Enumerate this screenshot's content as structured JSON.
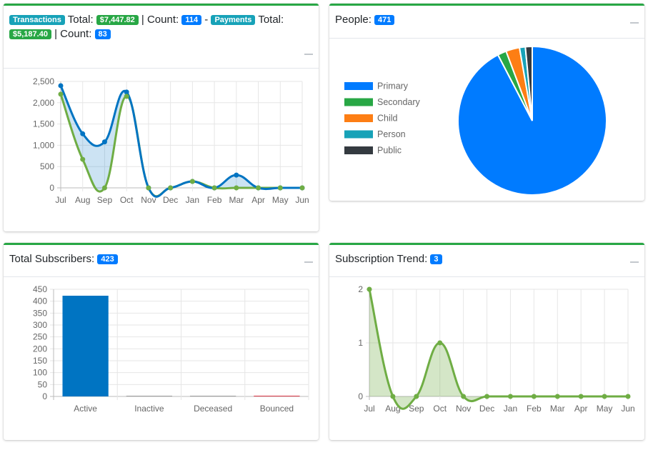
{
  "transactions_card": {
    "transactions_badge": "Transactions",
    "total_label": "Total:",
    "transactions_total": "$7,447.82",
    "count_label": "| Count:",
    "transactions_count": "114",
    "separator": "-",
    "payments_badge": "Payments",
    "payments_total": "$5,187.40",
    "payments_count": "83"
  },
  "people_card": {
    "title": "People:",
    "count": "471"
  },
  "subscribers_card": {
    "title": "Total Subscribers:",
    "count": "423"
  },
  "trend_card": {
    "title": "Subscription Trend:",
    "count": "3"
  },
  "colors": {
    "accent": "#28a745",
    "blue": "#0074c2",
    "green": "#6fad44"
  },
  "chart_data": [
    {
      "type": "line",
      "categories": [
        "Jul",
        "Aug",
        "Sep",
        "Oct",
        "Nov",
        "Dec",
        "Jan",
        "Feb",
        "Mar",
        "Apr",
        "May",
        "Jun"
      ],
      "series": [
        {
          "values": [
            2400,
            1270,
            1080,
            2250,
            0,
            0,
            150,
            0,
            300,
            0,
            0,
            0
          ],
          "color": "#0074c2"
        },
        {
          "values": [
            2200,
            670,
            0,
            2150,
            0,
            0,
            150,
            0,
            0,
            0,
            0,
            0
          ],
          "color": "#6fad44"
        }
      ],
      "yticks": [
        "0",
        "500",
        "1,000",
        "1,500",
        "2,000",
        "2,500"
      ],
      "ylim": [
        0,
        2500
      ],
      "grid": true
    },
    {
      "type": "pie",
      "categories": [
        "Primary",
        "Secondary",
        "Child",
        "Person",
        "Public"
      ],
      "values": [
        435,
        9,
        14,
        6,
        7
      ],
      "colors": [
        "#007bff",
        "#28a745",
        "#fd7e14",
        "#17a2b8",
        "#343a40"
      ],
      "legend": "left"
    },
    {
      "type": "bar",
      "categories": [
        "Active",
        "Inactive",
        "Deceased",
        "Bounced"
      ],
      "values": [
        423,
        0,
        0,
        0
      ],
      "colors": [
        "#0074c2",
        "#9e9e9e",
        "#9e9e9e",
        "#dc3545"
      ],
      "yticks": [
        "0",
        "50",
        "100",
        "150",
        "200",
        "250",
        "300",
        "350",
        "400",
        "450"
      ],
      "ylim": [
        0,
        450
      ],
      "grid": true
    },
    {
      "type": "area",
      "categories": [
        "Jul",
        "Aug",
        "Sep",
        "Oct",
        "Nov",
        "Dec",
        "Jan",
        "Feb",
        "Mar",
        "Apr",
        "May",
        "Jun"
      ],
      "values": [
        2,
        0,
        0,
        1,
        0,
        0,
        0,
        0,
        0,
        0,
        0,
        0
      ],
      "color": "#6fad44",
      "yticks": [
        "0",
        "1",
        "2"
      ],
      "ylim": [
        0,
        2
      ],
      "grid": true
    }
  ]
}
